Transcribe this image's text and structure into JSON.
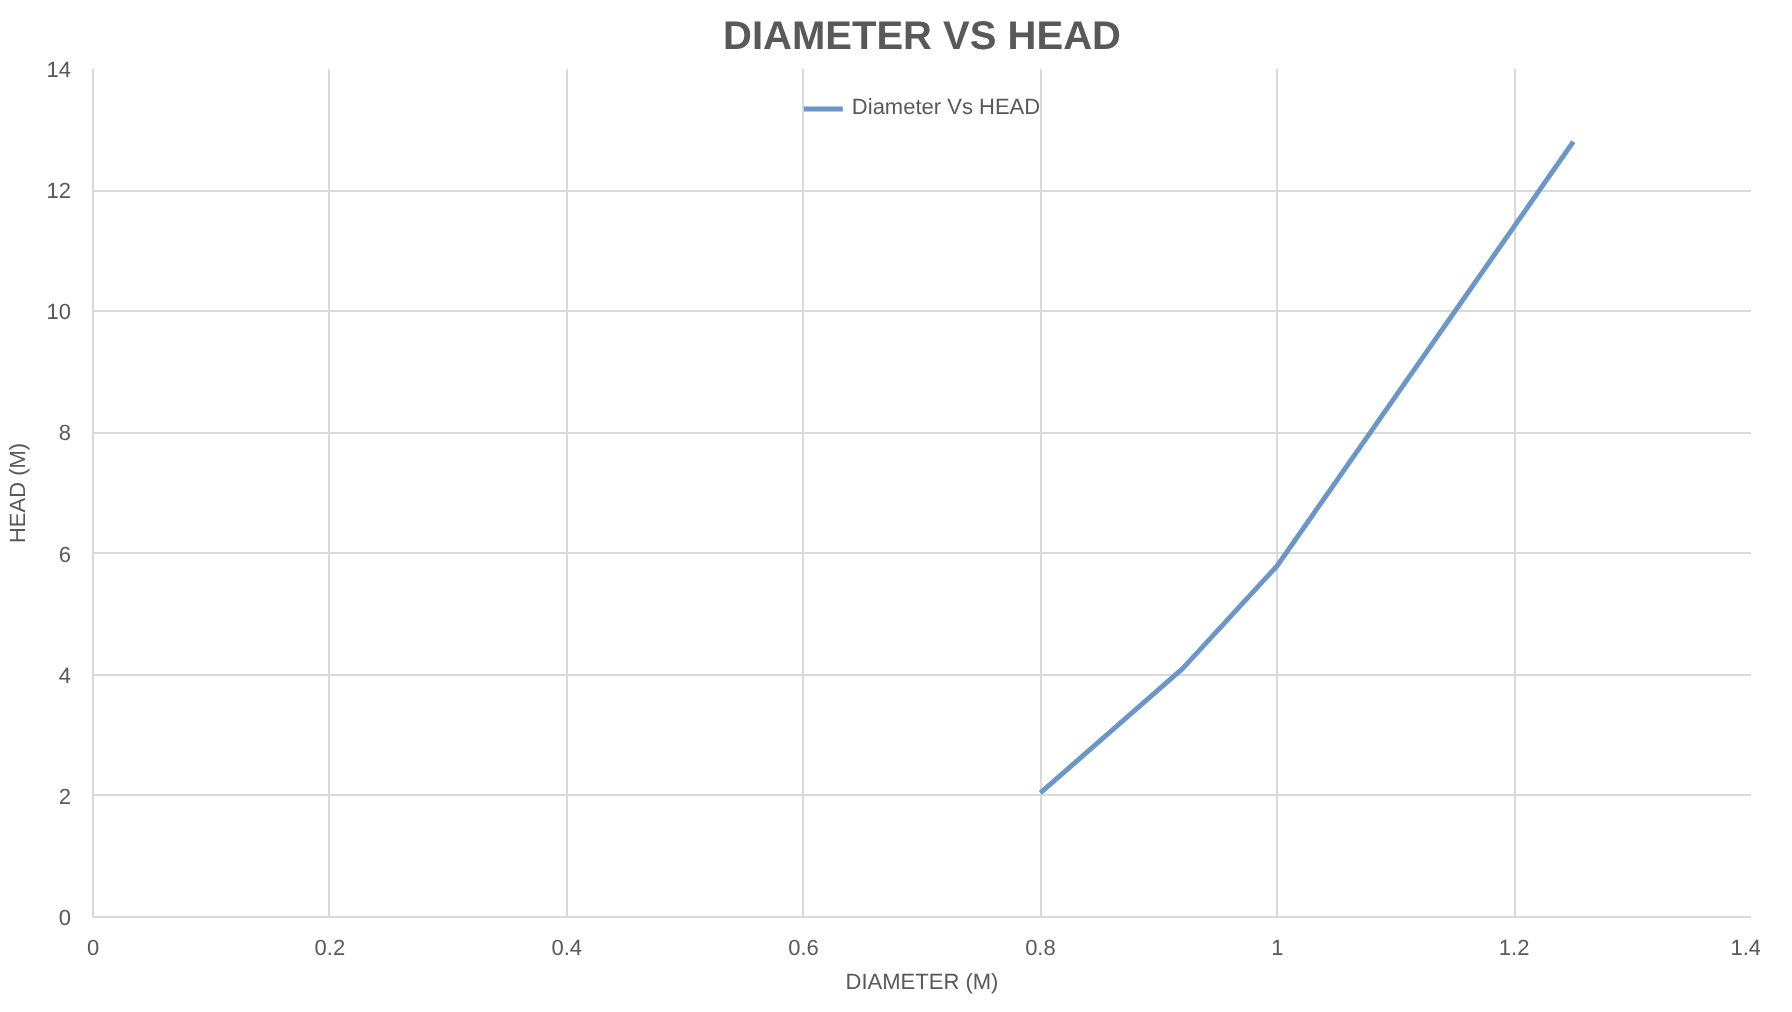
{
  "chart_data": {
    "type": "line",
    "title": "DIAMETER VS HEAD",
    "xlabel": "DIAMETER (M)",
    "ylabel": "HEAD (M)",
    "x": [
      0.8,
      0.92,
      1.0,
      1.1,
      1.25
    ],
    "series": [
      {
        "name": "Diameter Vs HEAD",
        "color": "#6b96c8",
        "values": [
          2.05,
          4.1,
          5.8,
          8.6,
          12.8
        ]
      }
    ],
    "xlim": [
      0,
      1.4
    ],
    "xticks": [
      0,
      0.2,
      0.4,
      0.6,
      0.8,
      1,
      1.2,
      1.4
    ],
    "ylim": [
      0,
      14
    ],
    "yticks": [
      0,
      2,
      4,
      6,
      8,
      10,
      12,
      14
    ],
    "grid": true,
    "legend": "top",
    "marker": "none",
    "line_style": "solid"
  }
}
